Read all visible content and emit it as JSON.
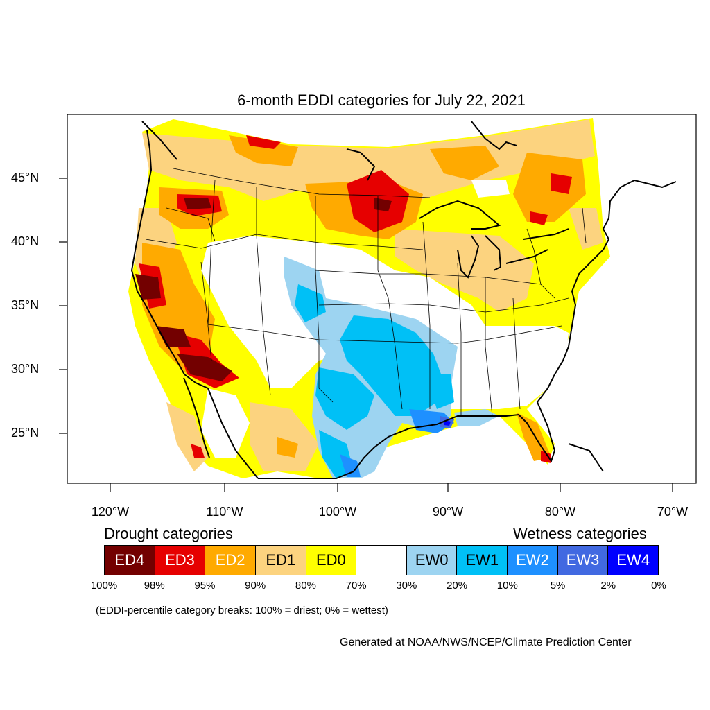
{
  "title": "6-month EDDI categories for July 22, 2021",
  "lat_labels": [
    "45°N",
    "40°N",
    "35°N",
    "30°N",
    "25°N"
  ],
  "lon_labels": [
    "120°W",
    "110°W",
    "100°W",
    "90°W",
    "80°W",
    "70°W"
  ],
  "legend": {
    "drought_heading": "Drought categories",
    "wetness_heading": "Wetness categories",
    "categories": [
      {
        "label": "ED4",
        "color": "#730000",
        "text_color": "#ffffff"
      },
      {
        "label": "ED3",
        "color": "#e60000",
        "text_color": "#ffffff"
      },
      {
        "label": "ED2",
        "color": "#ffaa00",
        "text_color": "#ffffff"
      },
      {
        "label": "ED1",
        "color": "#fcd37f",
        "text_color": "#000000"
      },
      {
        "label": "ED0",
        "color": "#ffff00",
        "text_color": "#000000"
      },
      {
        "label": "",
        "color": "#ffffff",
        "text_color": "#000000"
      },
      {
        "label": "EW0",
        "color": "#9dd4f1",
        "text_color": "#000000"
      },
      {
        "label": "EW1",
        "color": "#00c0f6",
        "text_color": "#000000"
      },
      {
        "label": "EW2",
        "color": "#1e90ff",
        "text_color": "#ffffff"
      },
      {
        "label": "EW3",
        "color": "#4169e1",
        "text_color": "#ffffff"
      },
      {
        "label": "EW4",
        "color": "#0000ff",
        "text_color": "#ffffff"
      }
    ],
    "breaks": [
      "100%",
      "98%",
      "95%",
      "90%",
      "80%",
      "70%",
      "30%",
      "20%",
      "10%",
      "5%",
      "2%",
      "0%"
    ]
  },
  "note": "(EDDI-percentile category breaks: 100% = driest; 0% = wettest)",
  "credit": "Generated at NOAA/NWS/NCEP/Climate Prediction Center"
}
